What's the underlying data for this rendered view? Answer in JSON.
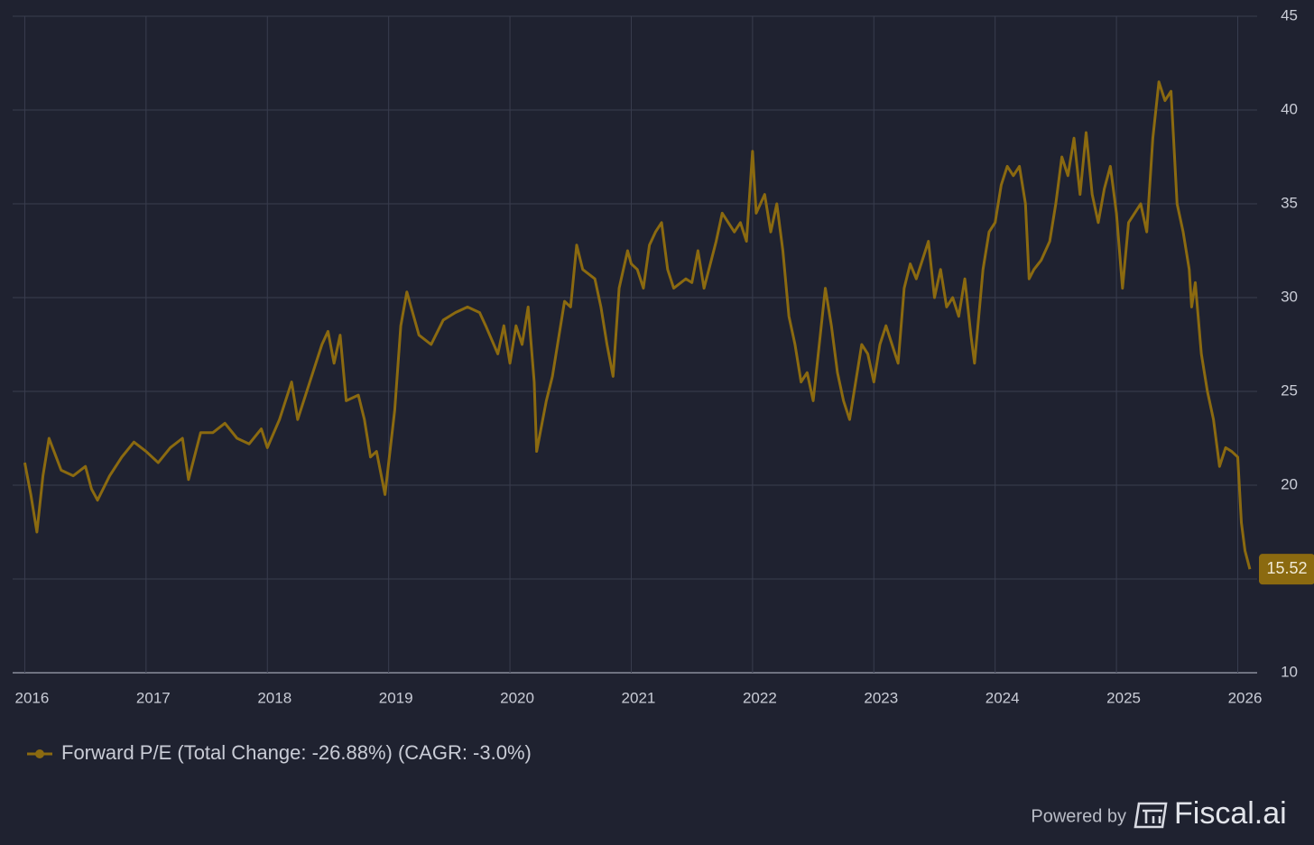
{
  "chart_data": {
    "type": "line",
    "x": [
      2016,
      2016.05,
      2016.1,
      2016.15,
      2016.2,
      2016.3,
      2016.4,
      2016.5,
      2016.55,
      2016.6,
      2016.7,
      2016.8,
      2016.9,
      2017,
      2017.1,
      2017.2,
      2017.3,
      2017.35,
      2017.45,
      2017.55,
      2017.65,
      2017.75,
      2017.85,
      2017.95,
      2018,
      2018.1,
      2018.2,
      2018.25,
      2018.35,
      2018.45,
      2018.5,
      2018.55,
      2018.6,
      2018.65,
      2018.75,
      2018.8,
      2018.85,
      2018.9,
      2018.97,
      2019.05,
      2019.1,
      2019.15,
      2019.25,
      2019.35,
      2019.45,
      2019.55,
      2019.65,
      2019.75,
      2019.8,
      2019.9,
      2019.95,
      2020,
      2020.05,
      2020.1,
      2020.15,
      2020.2,
      2020.22,
      2020.3,
      2020.35,
      2020.45,
      2020.5,
      2020.55,
      2020.6,
      2020.7,
      2020.75,
      2020.8,
      2020.85,
      2020.9,
      2020.97,
      2021,
      2021.05,
      2021.1,
      2021.15,
      2021.2,
      2021.25,
      2021.3,
      2021.35,
      2021.45,
      2021.5,
      2021.55,
      2021.6,
      2021.7,
      2021.75,
      2021.8,
      2021.85,
      2021.9,
      2021.95,
      2022,
      2022.03,
      2022.1,
      2022.15,
      2022.2,
      2022.25,
      2022.3,
      2022.35,
      2022.4,
      2022.45,
      2022.5,
      2022.55,
      2022.6,
      2022.65,
      2022.7,
      2022.75,
      2022.8,
      2022.85,
      2022.9,
      2022.95,
      2023,
      2023.05,
      2023.1,
      2023.15,
      2023.2,
      2023.25,
      2023.3,
      2023.35,
      2023.4,
      2023.45,
      2023.5,
      2023.55,
      2023.6,
      2023.65,
      2023.7,
      2023.75,
      2023.8,
      2023.83,
      2023.9,
      2023.95,
      2024,
      2024.05,
      2024.1,
      2024.15,
      2024.2,
      2024.25,
      2024.28,
      2024.32,
      2024.38,
      2024.45,
      2024.5,
      2024.55,
      2024.6,
      2024.65,
      2024.7,
      2024.75,
      2024.8,
      2024.85,
      2024.9,
      2024.95,
      2025,
      2025.05,
      2025.1,
      2025.15,
      2025.2,
      2025.25,
      2025.3,
      2025.35,
      2025.4,
      2025.45,
      2025.5,
      2025.55,
      2025.6,
      2025.62,
      2025.65,
      2025.7,
      2025.75,
      2025.8,
      2025.85,
      2025.9,
      2025.95,
      2026,
      2026.03,
      2026.06,
      2026.1
    ],
    "series": [
      {
        "name": "Forward P/E (Total Change: -26.88%) (CAGR: -3.0%)",
        "color": "#8b6a10",
        "values": [
          21.2,
          19.5,
          17.5,
          20.5,
          22.5,
          20.8,
          20.5,
          21,
          19.8,
          19.2,
          20.5,
          21.5,
          22.3,
          21.8,
          21.2,
          22,
          22.5,
          20.3,
          22.8,
          22.8,
          23.3,
          22.5,
          22.2,
          23,
          22,
          23.5,
          25.5,
          23.5,
          25.5,
          27.5,
          28.2,
          26.5,
          28,
          24.5,
          24.8,
          23.5,
          21.5,
          21.8,
          19.5,
          24,
          28.5,
          30.3,
          28,
          27.5,
          28.8,
          29.2,
          29.5,
          29.2,
          28.5,
          27,
          28.5,
          26.5,
          28.5,
          27.5,
          29.5,
          25.5,
          21.8,
          24.5,
          25.8,
          29.8,
          29.5,
          32.8,
          31.5,
          31,
          29.5,
          27.5,
          25.8,
          30.5,
          32.5,
          31.8,
          31.5,
          30.5,
          32.8,
          33.5,
          34,
          31.5,
          30.5,
          31,
          30.8,
          32.5,
          30.5,
          33,
          34.5,
          34,
          33.5,
          34,
          33,
          37.8,
          34.5,
          35.5,
          33.5,
          35,
          32.5,
          29,
          27.5,
          25.5,
          26,
          24.5,
          27.5,
          30.5,
          28.5,
          26,
          24.5,
          23.5,
          25.5,
          27.5,
          27,
          25.5,
          27.5,
          28.5,
          27.5,
          26.5,
          30.5,
          31.8,
          31,
          32,
          33,
          30,
          31.5,
          29.5,
          30,
          29,
          31,
          28,
          26.5,
          31.5,
          33.5,
          34,
          36,
          37,
          36.5,
          37,
          35,
          31,
          31.5,
          32,
          33,
          35,
          37.5,
          36.5,
          38.5,
          35.5,
          38.8,
          35.5,
          34,
          35.8,
          37,
          34.5,
          30.5,
          34,
          34.5,
          35,
          33.5,
          38.5,
          41.5,
          40.5,
          41,
          35,
          33.5,
          31.5,
          29.5,
          30.8,
          27,
          25,
          23.5,
          21,
          22,
          21.8,
          21.5,
          18,
          16.5,
          15.52
        ]
      }
    ],
    "xlim": [
      2015.9,
      2026.16
    ],
    "xticks": [
      2016,
      2017,
      2018,
      2019,
      2020,
      2021,
      2022,
      2023,
      2024,
      2025,
      2026
    ],
    "ylim": [
      10,
      45
    ],
    "yticks": [
      10,
      15,
      20,
      25,
      30,
      35,
      40,
      45
    ],
    "grid": true
  },
  "footer": {
    "powered_by": "Powered by",
    "brand": "Fiscal.ai"
  }
}
